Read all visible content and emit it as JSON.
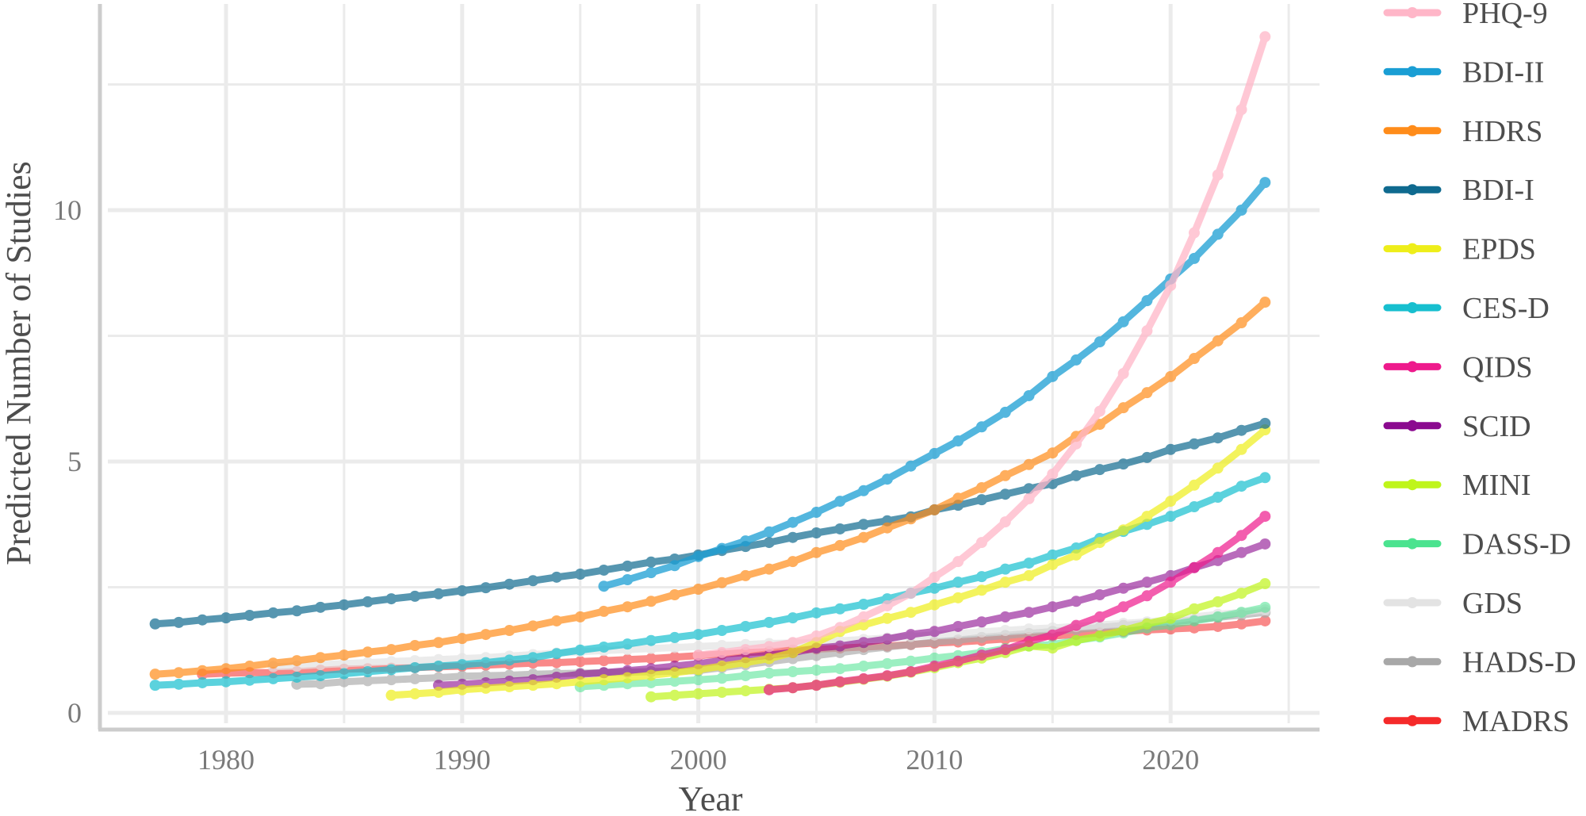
{
  "chart_data": {
    "type": "line",
    "title": "",
    "xlabel": "Year",
    "ylabel": "Predicted Number of Studies",
    "xlim": [
      1975.2,
      2026.3
    ],
    "ylim": [
      0,
      14.1
    ],
    "x_ticks": [
      1980,
      1990,
      2000,
      2010,
      2020
    ],
    "x_tick_labels": [
      "1980",
      "1990",
      "2000",
      "2010",
      "2020"
    ],
    "y_ticks": [
      0,
      5,
      10
    ],
    "y_tick_labels": [
      "0",
      "5",
      "10"
    ],
    "grid": true,
    "legend_position": "right",
    "series": [
      {
        "name": "PHQ-9",
        "color": "#FFB6C8",
        "opacity": 0.75,
        "x": [
          2000,
          2001,
          2002,
          2003,
          2004,
          2005,
          2006,
          2007,
          2008,
          2009,
          2010,
          2011,
          2012,
          2013,
          2014,
          2015,
          2016,
          2017,
          2018,
          2019,
          2020,
          2021,
          2022,
          2023,
          2024
        ],
        "y": [
          1.15,
          1.2,
          1.26,
          1.32,
          1.4,
          1.53,
          1.7,
          1.91,
          2.13,
          2.38,
          2.7,
          3.01,
          3.39,
          3.8,
          4.26,
          4.75,
          5.35,
          6.0,
          6.75,
          7.6,
          8.5,
          9.55,
          10.7,
          12.0,
          13.45
        ]
      },
      {
        "name": "BDI-II",
        "color": "#1A9ED4",
        "opacity": 0.75,
        "x": [
          1996,
          1997,
          1998,
          1999,
          2000,
          2001,
          2002,
          2003,
          2004,
          2005,
          2006,
          2007,
          2008,
          2009,
          2010,
          2011,
          2012,
          2013,
          2014,
          2015,
          2016,
          2017,
          2018,
          2019,
          2020,
          2021,
          2022,
          2023,
          2024
        ],
        "y": [
          2.52,
          2.65,
          2.79,
          2.93,
          3.11,
          3.27,
          3.42,
          3.6,
          3.79,
          3.99,
          4.21,
          4.42,
          4.65,
          4.91,
          5.16,
          5.41,
          5.69,
          5.98,
          6.31,
          6.69,
          7.02,
          7.38,
          7.78,
          8.2,
          8.63,
          9.04,
          9.52,
          10.0,
          10.55
        ]
      },
      {
        "name": "HDRS",
        "color": "#FF8C1A",
        "opacity": 0.7,
        "x": [
          1977,
          1978,
          1979,
          1980,
          1981,
          1982,
          1983,
          1984,
          1985,
          1986,
          1987,
          1988,
          1989,
          1990,
          1991,
          1992,
          1993,
          1994,
          1995,
          1996,
          1997,
          1998,
          1999,
          2000,
          2001,
          2002,
          2003,
          2004,
          2005,
          2006,
          2007,
          2008,
          2009,
          2010,
          2011,
          2012,
          2013,
          2014,
          2015,
          2016,
          2017,
          2018,
          2019,
          2020,
          2021,
          2022,
          2023,
          2024
        ],
        "y": [
          0.77,
          0.8,
          0.84,
          0.88,
          0.93,
          0.99,
          1.04,
          1.1,
          1.15,
          1.21,
          1.26,
          1.34,
          1.4,
          1.48,
          1.56,
          1.64,
          1.73,
          1.83,
          1.91,
          2.02,
          2.11,
          2.22,
          2.35,
          2.46,
          2.59,
          2.73,
          2.86,
          3.01,
          3.19,
          3.33,
          3.49,
          3.68,
          3.86,
          4.04,
          4.27,
          4.48,
          4.72,
          4.94,
          5.17,
          5.5,
          5.74,
          6.07,
          6.37,
          6.69,
          7.05,
          7.4,
          7.76,
          8.17
        ]
      },
      {
        "name": "BDI-I",
        "color": "#0F6A8F",
        "opacity": 0.7,
        "x": [
          1977,
          1978,
          1979,
          1980,
          1981,
          1982,
          1983,
          1984,
          1985,
          1986,
          1987,
          1988,
          1989,
          1990,
          1991,
          1992,
          1993,
          1994,
          1995,
          1996,
          1997,
          1998,
          1999,
          2000,
          2001,
          2002,
          2003,
          2004,
          2005,
          2006,
          2007,
          2008,
          2009,
          2010,
          2011,
          2012,
          2013,
          2014,
          2015,
          2016,
          2017,
          2018,
          2019,
          2020,
          2021,
          2022,
          2023,
          2024
        ],
        "y": [
          1.77,
          1.8,
          1.85,
          1.89,
          1.94,
          1.99,
          2.03,
          2.1,
          2.15,
          2.21,
          2.27,
          2.32,
          2.37,
          2.43,
          2.49,
          2.56,
          2.63,
          2.7,
          2.76,
          2.84,
          2.92,
          3.0,
          3.06,
          3.14,
          3.23,
          3.31,
          3.39,
          3.49,
          3.58,
          3.66,
          3.75,
          3.82,
          3.9,
          4.04,
          4.13,
          4.24,
          4.35,
          4.46,
          4.56,
          4.72,
          4.84,
          4.95,
          5.08,
          5.24,
          5.35,
          5.47,
          5.62,
          5.76
        ]
      },
      {
        "name": "EPDS",
        "color": "#EEEE1A",
        "opacity": 0.7,
        "x": [
          1987,
          1988,
          1989,
          1990,
          1991,
          1992,
          1993,
          1994,
          1995,
          1996,
          1997,
          1998,
          1999,
          2000,
          2001,
          2002,
          2003,
          2004,
          2005,
          2006,
          2007,
          2008,
          2009,
          2010,
          2011,
          2012,
          2013,
          2014,
          2015,
          2016,
          2017,
          2018,
          2019,
          2020,
          2021,
          2022,
          2023,
          2024
        ],
        "y": [
          0.35,
          0.38,
          0.41,
          0.46,
          0.49,
          0.52,
          0.55,
          0.58,
          0.62,
          0.66,
          0.7,
          0.75,
          0.8,
          0.86,
          0.93,
          1.0,
          1.08,
          1.2,
          1.4,
          1.62,
          1.75,
          1.88,
          2.0,
          2.15,
          2.29,
          2.44,
          2.6,
          2.73,
          2.95,
          3.14,
          3.39,
          3.64,
          3.91,
          4.21,
          4.53,
          4.87,
          5.24,
          5.63
        ]
      },
      {
        "name": "CES-D",
        "color": "#17BFCF",
        "opacity": 0.7,
        "x": [
          1977,
          1978,
          1979,
          1980,
          1981,
          1982,
          1983,
          1984,
          1985,
          1986,
          1987,
          1988,
          1989,
          1990,
          1991,
          1992,
          1993,
          1994,
          1995,
          1996,
          1997,
          1998,
          1999,
          2000,
          2001,
          2002,
          2003,
          2004,
          2005,
          2006,
          2007,
          2008,
          2009,
          2010,
          2011,
          2012,
          2013,
          2014,
          2015,
          2016,
          2017,
          2018,
          2019,
          2020,
          2021,
          2022,
          2023,
          2024
        ],
        "y": [
          0.55,
          0.57,
          0.6,
          0.62,
          0.65,
          0.68,
          0.71,
          0.74,
          0.78,
          0.82,
          0.86,
          0.9,
          0.93,
          0.96,
          1.0,
          1.05,
          1.1,
          1.18,
          1.25,
          1.31,
          1.37,
          1.44,
          1.5,
          1.56,
          1.64,
          1.72,
          1.8,
          1.89,
          1.99,
          2.07,
          2.16,
          2.27,
          2.38,
          2.48,
          2.6,
          2.71,
          2.86,
          2.98,
          3.14,
          3.28,
          3.47,
          3.61,
          3.75,
          3.91,
          4.1,
          4.29,
          4.51,
          4.68
        ]
      },
      {
        "name": "QIDS",
        "color": "#EE1A8C",
        "opacity": 0.7,
        "x": [
          2003,
          2004,
          2005,
          2006,
          2007,
          2008,
          2009,
          2010,
          2011,
          2012,
          2013,
          2014,
          2015,
          2016,
          2017,
          2018,
          2019,
          2020,
          2021,
          2022,
          2023,
          2024
        ],
        "y": [
          0.46,
          0.5,
          0.55,
          0.62,
          0.68,
          0.74,
          0.82,
          0.93,
          1.03,
          1.15,
          1.26,
          1.42,
          1.55,
          1.74,
          1.91,
          2.11,
          2.33,
          2.6,
          2.89,
          3.19,
          3.53,
          3.91
        ]
      },
      {
        "name": "SCID",
        "color": "#8B0A8F",
        "opacity": 0.6,
        "x": [
          1989,
          1990,
          1991,
          1992,
          1993,
          1994,
          1995,
          1996,
          1997,
          1998,
          1999,
          2000,
          2001,
          2002,
          2003,
          2004,
          2005,
          2006,
          2007,
          2008,
          2009,
          2010,
          2011,
          2012,
          2013,
          2014,
          2015,
          2016,
          2017,
          2018,
          2019,
          2020,
          2021,
          2022,
          2023,
          2024
        ],
        "y": [
          0.55,
          0.57,
          0.6,
          0.63,
          0.66,
          0.71,
          0.77,
          0.8,
          0.84,
          0.88,
          0.93,
          0.98,
          1.04,
          1.1,
          1.15,
          1.2,
          1.29,
          1.33,
          1.4,
          1.47,
          1.56,
          1.62,
          1.72,
          1.81,
          1.91,
          2.0,
          2.11,
          2.22,
          2.35,
          2.48,
          2.6,
          2.73,
          2.89,
          3.03,
          3.19,
          3.36
        ]
      },
      {
        "name": "MINI",
        "color": "#BFF51A",
        "opacity": 0.7,
        "x": [
          1998,
          1999,
          2000,
          2001,
          2002,
          2003,
          2004,
          2005,
          2006,
          2007,
          2008,
          2009,
          2010,
          2011,
          2012,
          2013,
          2014,
          2015,
          2016,
          2017,
          2018,
          2019,
          2020,
          2021,
          2022,
          2023,
          2024
        ],
        "y": [
          0.32,
          0.35,
          0.38,
          0.41,
          0.44,
          0.47,
          0.5,
          0.55,
          0.61,
          0.67,
          0.73,
          0.81,
          0.9,
          1.0,
          1.09,
          1.2,
          1.33,
          1.29,
          1.44,
          1.53,
          1.64,
          1.77,
          1.88,
          2.07,
          2.21,
          2.38,
          2.57
        ]
      },
      {
        "name": "DASS-D",
        "color": "#4BE38F",
        "opacity": 0.55,
        "x": [
          1995,
          1996,
          1997,
          1998,
          1999,
          2000,
          2001,
          2002,
          2003,
          2004,
          2005,
          2006,
          2007,
          2008,
          2009,
          2010,
          2011,
          2012,
          2013,
          2014,
          2015,
          2016,
          2017,
          2018,
          2019,
          2020,
          2021,
          2022,
          2023,
          2024
        ],
        "y": [
          0.52,
          0.55,
          0.58,
          0.6,
          0.63,
          0.66,
          0.69,
          0.74,
          0.79,
          0.82,
          0.85,
          0.88,
          0.93,
          0.98,
          1.03,
          1.09,
          1.14,
          1.2,
          1.28,
          1.33,
          1.36,
          1.44,
          1.51,
          1.59,
          1.69,
          1.75,
          1.83,
          1.91,
          2.0,
          2.1
        ]
      },
      {
        "name": "GDS",
        "color": "#E3E3E3",
        "opacity": 0.7,
        "x": [
          1982,
          1983,
          1984,
          1985,
          1986,
          1987,
          1988,
          1989,
          1990,
          1991,
          1992,
          1993,
          1994,
          1995,
          1996,
          1997,
          1998,
          1999,
          2000,
          2001,
          2002,
          2003,
          2004,
          2005,
          2006,
          2007,
          2008,
          2009,
          2010,
          2011,
          2012,
          2013,
          2014,
          2015,
          2016,
          2017,
          2018,
          2019,
          2020,
          2021,
          2022,
          2023,
          2024
        ],
        "y": [
          0.92,
          0.93,
          0.96,
          0.98,
          1.0,
          1.02,
          1.04,
          1.06,
          1.08,
          1.1,
          1.13,
          1.16,
          1.19,
          1.22,
          1.24,
          1.26,
          1.28,
          1.3,
          1.32,
          1.34,
          1.36,
          1.38,
          1.39,
          1.4,
          1.43,
          1.46,
          1.49,
          1.52,
          1.55,
          1.58,
          1.61,
          1.64,
          1.67,
          1.69,
          1.72,
          1.75,
          1.78,
          1.81,
          1.85,
          1.91,
          1.96,
          2.0,
          2.05
        ]
      },
      {
        "name": "HADS-D",
        "color": "#A8A8A8",
        "opacity": 0.65,
        "x": [
          1983,
          1984,
          1985,
          1986,
          1987,
          1988,
          1989,
          1990,
          1991,
          1992,
          1993,
          1994,
          1995,
          1996,
          1997,
          1998,
          1999,
          2000,
          2001,
          2002,
          2003,
          2004,
          2005,
          2006,
          2007,
          2008,
          2009,
          2010,
          2011,
          2012,
          2013,
          2014,
          2015,
          2016,
          2017,
          2018,
          2019,
          2020,
          2021,
          2022,
          2023,
          2024
        ],
        "y": [
          0.57,
          0.58,
          0.62,
          0.64,
          0.66,
          0.68,
          0.7,
          0.73,
          0.74,
          0.75,
          0.77,
          0.78,
          0.79,
          0.8,
          0.81,
          0.82,
          0.83,
          0.84,
          0.9,
          0.96,
          1.02,
          1.08,
          1.14,
          1.2,
          1.26,
          1.31,
          1.36,
          1.41,
          1.45,
          1.5,
          1.54,
          1.58,
          1.62,
          1.66,
          1.7,
          1.74,
          1.78,
          1.81,
          1.85,
          1.9,
          1.95,
          2.0
        ]
      },
      {
        "name": "MADRS",
        "color": "#F52A2A",
        "opacity": 0.55,
        "x": [
          1979,
          1980,
          1981,
          1982,
          1983,
          1984,
          1985,
          1986,
          1987,
          1988,
          1989,
          1990,
          1991,
          1992,
          1993,
          1994,
          1995,
          1996,
          1997,
          1998,
          1999,
          2000,
          2001,
          2002,
          2003,
          2004,
          2005,
          2006,
          2007,
          2008,
          2009,
          2010,
          2011,
          2012,
          2013,
          2014,
          2015,
          2016,
          2017,
          2018,
          2019,
          2020,
          2021,
          2022,
          2023,
          2024
        ],
        "y": [
          0.77,
          0.79,
          0.8,
          0.8,
          0.82,
          0.85,
          0.87,
          0.88,
          0.89,
          0.9,
          0.92,
          0.93,
          0.95,
          0.97,
          0.99,
          1.0,
          1.02,
          1.04,
          1.06,
          1.08,
          1.11,
          1.14,
          1.17,
          1.2,
          1.22,
          1.25,
          1.27,
          1.29,
          1.31,
          1.33,
          1.36,
          1.39,
          1.41,
          1.44,
          1.47,
          1.5,
          1.53,
          1.56,
          1.59,
          1.62,
          1.65,
          1.67,
          1.69,
          1.72,
          1.77,
          1.83
        ]
      }
    ]
  }
}
